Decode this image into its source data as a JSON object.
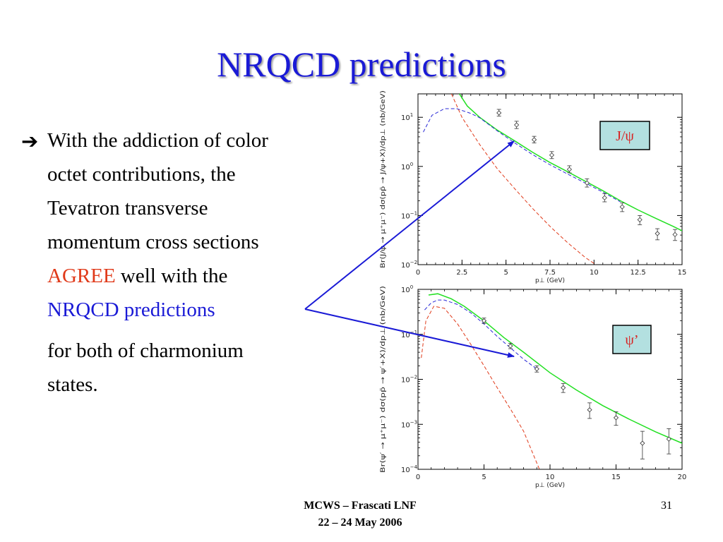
{
  "slide": {
    "title": "NRQCD predictions",
    "bullet_arrow": "➔",
    "lines": [
      "With the addiction of color",
      "octet contributions, the",
      "Tevatron transverse",
      "momentum cross sections"
    ],
    "agree_word": "AGREE",
    "agree_rest": " well with the",
    "nrqcd_text": "NRQCD predictions",
    "final_lines": [
      "for both of charmonium",
      "states."
    ],
    "footer_venue": "MCWS – Frascati LNF",
    "footer_date": "22 – 24 May 2006",
    "slide_number": "31"
  },
  "colors": {
    "title": "#1a1ad6",
    "agree": "#e03a1a",
    "nrqcd": "#1a1ad6",
    "arrow": "#1a1ad6",
    "total_curve": "#22e022",
    "singlet_curve": "#e03a1a",
    "octet_curve": "#2a2ad6",
    "tag_fill": "#b3e0e0",
    "tag_text": "#d92020"
  },
  "chart_data": [
    {
      "type": "line",
      "label_box": "J/ψ",
      "xlabel": "p⊥ (GeV)",
      "ylabel": "Br(J/ψ → μ⁺μ⁻) dσ(pp̄ → J/ψ+X)/dp⊥ (nb/GeV)",
      "xlim": [
        0,
        15
      ],
      "ylim": [
        0.01,
        30
      ],
      "yscale": "log",
      "xticks": [
        0,
        2.5,
        5,
        7.5,
        10,
        12.5,
        15
      ],
      "xtick_labels": [
        "0",
        "2.5",
        "5",
        "7.5",
        "10",
        "12.5",
        "15"
      ],
      "yticks": [
        0.01,
        0.1,
        1,
        10
      ],
      "ytick_bases": [
        "10",
        "10",
        "10",
        "10"
      ],
      "ytick_exps": [
        "−2",
        "−1",
        "0",
        "1"
      ],
      "series": [
        {
          "style": "solid",
          "color": "#22e022",
          "x": [
            2.35,
            2.8,
            3.5,
            4.5,
            5.5,
            6.5,
            7.5,
            8.5,
            9.5,
            10.5,
            11.5,
            12.5,
            13.5,
            14.5,
            15
          ],
          "y": [
            30,
            17,
            10,
            5.5,
            3.3,
            1.95,
            1.2,
            0.78,
            0.5,
            0.32,
            0.2,
            0.13,
            0.088,
            0.06,
            0.049
          ]
        },
        {
          "style": "dashed",
          "color": "#2a2ad6",
          "x": [
            0.3,
            0.8,
            1.5,
            2.2,
            3,
            3.5,
            4.5,
            5.5,
            6.5,
            7.5,
            8.5,
            9.5,
            10.5,
            11.5
          ],
          "y": [
            5,
            11,
            15,
            15,
            12,
            9.8,
            5.3,
            3,
            1.75,
            1.08,
            0.7,
            0.46,
            0.3,
            0.19
          ]
        },
        {
          "style": "dashed",
          "color": "#e03a1a",
          "x": [
            1.9,
            2.5,
            3.5,
            4.5,
            5.5,
            6.5,
            7.5,
            8.5,
            9.5,
            10.1
          ],
          "y": [
            30,
            10,
            2.8,
            0.9,
            0.35,
            0.14,
            0.06,
            0.028,
            0.014,
            0.01
          ]
        }
      ],
      "data_points": {
        "x": [
          4.6,
          5.6,
          6.6,
          7.6,
          8.6,
          9.6,
          10.6,
          11.6,
          12.6,
          13.6,
          14.6
        ],
        "y": [
          12.3,
          7,
          3.5,
          1.7,
          0.87,
          0.46,
          0.23,
          0.15,
          0.082,
          0.043,
          0.041
        ],
        "yerr_low": [
          10.6,
          5.9,
          3.0,
          1.44,
          0.74,
          0.38,
          0.19,
          0.12,
          0.065,
          0.032,
          0.031
        ],
        "yerr_high": [
          14.5,
          8.3,
          4.1,
          2.0,
          1.03,
          0.56,
          0.28,
          0.18,
          0.1,
          0.054,
          0.052
        ]
      }
    },
    {
      "type": "line",
      "label_box": "ψ’",
      "xlabel": "p⊥ (GeV)",
      "ylabel": "Br(ψ′ → μ⁺μ⁻) dσ(pp̄ → ψ′+X)/dp⊥ (nb/GeV)",
      "xlim": [
        0,
        20
      ],
      "ylim": [
        0.0001,
        1
      ],
      "yscale": "log",
      "xticks": [
        0,
        5,
        10,
        15,
        20
      ],
      "xtick_labels": [
        "0",
        "5",
        "10",
        "15",
        "20"
      ],
      "yticks": [
        0.0001,
        0.001,
        0.01,
        0.1,
        1
      ],
      "ytick_bases": [
        "10",
        "10",
        "10",
        "10",
        "10"
      ],
      "ytick_exps": [
        "−4",
        "−3",
        "−2",
        "−1",
        "0"
      ],
      "series": [
        {
          "style": "solid",
          "color": "#22e022",
          "x": [
            0.8,
            1.5,
            2.5,
            3.5,
            5,
            6.5,
            8,
            10,
            12,
            14,
            16,
            18,
            20
          ],
          "y": [
            0.75,
            0.8,
            0.62,
            0.42,
            0.2,
            0.085,
            0.04,
            0.014,
            0.0058,
            0.0026,
            0.0013,
            0.00068,
            0.00038
          ]
        },
        {
          "style": "dashed",
          "color": "#2a2ad6",
          "x": [
            0.5,
            1,
            1.5,
            2,
            3,
            4,
            5,
            6,
            7,
            8,
            9
          ],
          "y": [
            0.35,
            0.5,
            0.58,
            0.58,
            0.46,
            0.3,
            0.17,
            0.09,
            0.05,
            0.028,
            0.017
          ]
        },
        {
          "style": "dashed",
          "color": "#e03a1a",
          "x": [
            0.25,
            0.6,
            1.2,
            2,
            3,
            4,
            5,
            6,
            7,
            8,
            9.2
          ],
          "y": [
            0.03,
            0.2,
            0.42,
            0.38,
            0.17,
            0.06,
            0.02,
            0.0065,
            0.0022,
            0.0007,
            0.0001
          ]
        }
      ],
      "data_points": {
        "x": [
          5,
          7,
          9,
          11,
          13,
          15,
          17,
          19
        ],
        "y": [
          0.2,
          0.055,
          0.017,
          0.0065,
          0.0021,
          0.0014,
          0.00038,
          0.00047
        ],
        "yerr_low": [
          0.175,
          0.048,
          0.0145,
          0.0051,
          0.00135,
          0.00095,
          0.00017,
          0.00022
        ],
        "yerr_high": [
          0.23,
          0.063,
          0.02,
          0.0081,
          0.003,
          0.0019,
          0.0007,
          0.0008
        ]
      }
    }
  ]
}
